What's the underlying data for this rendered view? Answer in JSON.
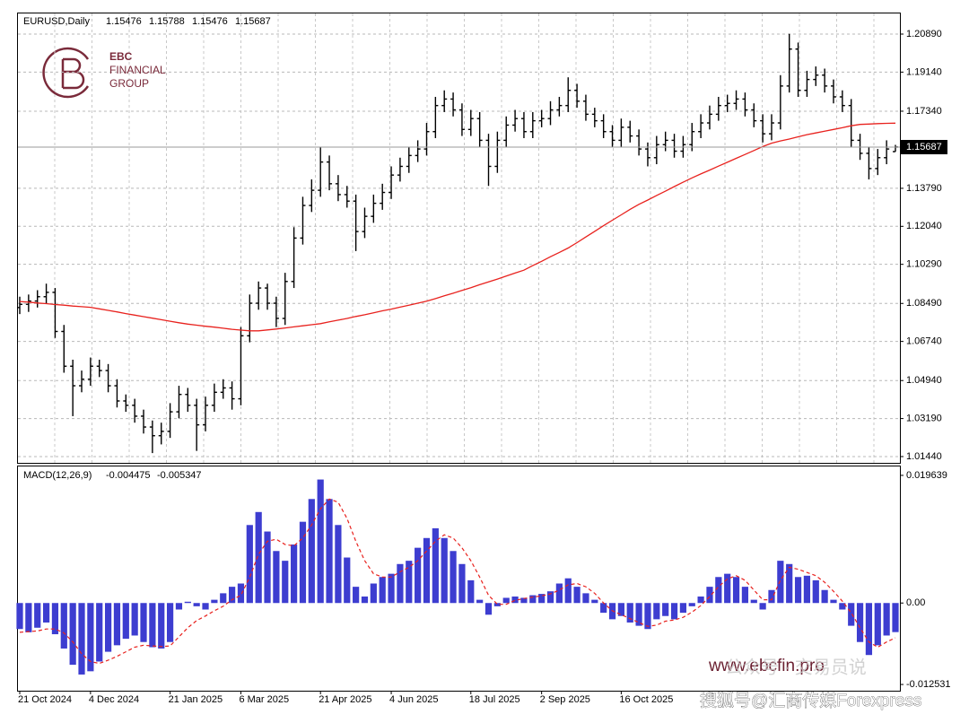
{
  "chart_data": [
    {
      "type": "ohlc",
      "title": "EURUSD,Daily",
      "header_values": [
        1.15476,
        1.15788,
        1.15476,
        1.15687
      ],
      "color": "#000000",
      "grid": true,
      "ylim": [
        1.0115,
        1.2184
      ],
      "yticks": [
        {
          "value": 1.2089,
          "label": "1.20890"
        },
        {
          "value": 1.1914,
          "label": "1.19140"
        },
        {
          "value": 1.1734,
          "label": "1.17340"
        },
        {
          "value": 1.1379,
          "label": "1.13790"
        },
        {
          "value": 1.1204,
          "label": "1.12040"
        },
        {
          "value": 1.1029,
          "label": "1.10290"
        },
        {
          "value": 1.0849,
          "label": "1.08490"
        },
        {
          "value": 1.0674,
          "label": "1.06740"
        },
        {
          "value": 1.0494,
          "label": "1.04940"
        },
        {
          "value": 1.0319,
          "label": "1.03190"
        },
        {
          "value": 1.0144,
          "label": "1.01440"
        }
      ],
      "open": [
        1.083,
        1.0845,
        1.086,
        1.088,
        1.09,
        1.072,
        1.056,
        1.047,
        1.05,
        1.056,
        1.054,
        1.047,
        1.04,
        1.038,
        1.033,
        1.028,
        1.024,
        1.026,
        1.035,
        1.043,
        1.038,
        1.029,
        1.038,
        1.044,
        1.046,
        1.041,
        1.07,
        1.085,
        1.092,
        1.085,
        1.078,
        1.095,
        1.115,
        1.13,
        1.137,
        1.15,
        1.14,
        1.135,
        1.132,
        1.118,
        1.125,
        1.131,
        1.136,
        1.144,
        1.148,
        1.153,
        1.156,
        1.164,
        1.176,
        1.179,
        1.174,
        1.165,
        1.17,
        1.16,
        1.148,
        1.16,
        1.167,
        1.17,
        1.164,
        1.169,
        1.17,
        1.174,
        1.176,
        1.183,
        1.178,
        1.172,
        1.169,
        1.164,
        1.16,
        1.166,
        1.162,
        1.156,
        1.152,
        1.158,
        1.16,
        1.155,
        1.158,
        1.164,
        1.168,
        1.172,
        1.176,
        1.177,
        1.179,
        1.174,
        1.169,
        1.163,
        1.168,
        1.185,
        1.202,
        1.183,
        1.188,
        1.19,
        1.185,
        1.18,
        1.176,
        1.16,
        1.154,
        1.147,
        1.152,
        1.1548
      ],
      "high": [
        1.088,
        1.089,
        1.091,
        1.094,
        1.092,
        1.075,
        1.059,
        1.054,
        1.06,
        1.059,
        1.057,
        1.05,
        1.043,
        1.041,
        1.036,
        1.031,
        1.03,
        1.039,
        1.047,
        1.046,
        1.041,
        1.042,
        1.048,
        1.05,
        1.049,
        1.074,
        1.089,
        1.095,
        1.094,
        1.088,
        1.099,
        1.12,
        1.134,
        1.142,
        1.157,
        1.153,
        1.144,
        1.139,
        1.135,
        1.129,
        1.135,
        1.14,
        1.148,
        1.152,
        1.157,
        1.16,
        1.168,
        1.18,
        1.183,
        1.182,
        1.177,
        1.174,
        1.173,
        1.163,
        1.164,
        1.171,
        1.174,
        1.173,
        1.173,
        1.174,
        1.178,
        1.18,
        1.189,
        1.186,
        1.181,
        1.175,
        1.172,
        1.167,
        1.17,
        1.169,
        1.165,
        1.159,
        1.162,
        1.164,
        1.163,
        1.162,
        1.168,
        1.172,
        1.176,
        1.18,
        1.181,
        1.183,
        1.182,
        1.177,
        1.172,
        1.172,
        1.19,
        1.209,
        1.205,
        1.192,
        1.194,
        1.193,
        1.188,
        1.183,
        1.179,
        1.163,
        1.157,
        1.156,
        1.16,
        1.1579
      ],
      "low": [
        1.08,
        1.081,
        1.083,
        1.085,
        1.069,
        1.053,
        1.033,
        1.044,
        1.047,
        1.051,
        1.044,
        1.037,
        1.035,
        1.03,
        1.025,
        1.016,
        1.02,
        1.023,
        1.032,
        1.035,
        1.017,
        1.026,
        1.035,
        1.041,
        1.036,
        1.038,
        1.067,
        1.082,
        1.082,
        1.074,
        1.075,
        1.092,
        1.112,
        1.127,
        1.134,
        1.137,
        1.132,
        1.129,
        1.109,
        1.115,
        1.122,
        1.128,
        1.133,
        1.141,
        1.145,
        1.15,
        1.153,
        1.161,
        1.173,
        1.171,
        1.162,
        1.162,
        1.157,
        1.139,
        1.145,
        1.157,
        1.164,
        1.161,
        1.161,
        1.166,
        1.167,
        1.171,
        1.173,
        1.175,
        1.169,
        1.166,
        1.161,
        1.157,
        1.157,
        1.159,
        1.153,
        1.148,
        1.149,
        1.155,
        1.152,
        1.152,
        1.155,
        1.161,
        1.165,
        1.169,
        1.173,
        1.174,
        1.171,
        1.166,
        1.159,
        1.16,
        1.165,
        1.182,
        1.18,
        1.18,
        1.185,
        1.182,
        1.177,
        1.173,
        1.157,
        1.151,
        1.142,
        1.144,
        1.149,
        1.1548
      ],
      "close": [
        1.0845,
        1.086,
        1.088,
        1.09,
        1.072,
        1.056,
        1.047,
        1.05,
        1.056,
        1.054,
        1.047,
        1.04,
        1.038,
        1.033,
        1.028,
        1.024,
        1.026,
        1.035,
        1.043,
        1.038,
        1.029,
        1.038,
        1.044,
        1.046,
        1.041,
        1.07,
        1.085,
        1.092,
        1.085,
        1.078,
        1.095,
        1.115,
        1.13,
        1.137,
        1.15,
        1.14,
        1.135,
        1.132,
        1.118,
        1.125,
        1.131,
        1.136,
        1.144,
        1.148,
        1.153,
        1.156,
        1.164,
        1.176,
        1.179,
        1.174,
        1.165,
        1.17,
        1.16,
        1.148,
        1.16,
        1.167,
        1.17,
        1.164,
        1.169,
        1.17,
        1.174,
        1.176,
        1.183,
        1.178,
        1.172,
        1.169,
        1.164,
        1.16,
        1.166,
        1.162,
        1.156,
        1.152,
        1.158,
        1.16,
        1.155,
        1.158,
        1.164,
        1.168,
        1.172,
        1.176,
        1.177,
        1.179,
        1.174,
        1.169,
        1.163,
        1.168,
        1.185,
        1.202,
        1.183,
        1.188,
        1.19,
        1.185,
        1.18,
        1.176,
        1.16,
        1.154,
        1.147,
        1.152,
        1.156,
        1.1569
      ],
      "ma": {
        "color": "#e8221e",
        "values": [
          1.0858,
          1.0855,
          1.0851,
          1.0848,
          1.0844,
          1.0841,
          1.0837,
          1.0834,
          1.0831,
          1.0824,
          1.0817,
          1.081,
          1.0802,
          1.0795,
          1.0788,
          1.0781,
          1.0774,
          1.0767,
          1.076,
          1.0754,
          1.0749,
          1.0744,
          1.074,
          1.0735,
          1.073,
          1.0726,
          1.0723,
          1.0723,
          1.0727,
          1.0731,
          1.0736,
          1.0741,
          1.0746,
          1.0751,
          1.0756,
          1.0764,
          1.0772,
          1.078,
          1.0789,
          1.0797,
          1.0806,
          1.0815,
          1.0823,
          1.0832,
          1.0841,
          1.085,
          1.0859,
          1.0871,
          1.0884,
          1.0896,
          1.0909,
          1.0921,
          1.0935,
          1.0948,
          1.0961,
          1.0975,
          1.0989,
          1.1002,
          1.1023,
          1.1043,
          1.1064,
          1.1084,
          1.1104,
          1.1129,
          1.1155,
          1.1181,
          1.1207,
          1.1232,
          1.1257,
          1.1282,
          1.1305,
          1.1325,
          1.1346,
          1.1366,
          1.1387,
          1.1407,
          1.1427,
          1.1445,
          1.1463,
          1.1481,
          1.1499,
          1.1517,
          1.1535,
          1.1553,
          1.1571,
          1.1587,
          1.1597,
          1.1606,
          1.1616,
          1.1626,
          1.1634,
          1.1642,
          1.165,
          1.1658,
          1.1667,
          1.1673,
          1.1675,
          1.1677,
          1.1678,
          1.1679
        ]
      },
      "annotations": [
        "EBC",
        "FINANCIAL",
        "GROUP",
        "www.ebcfin.pro",
        "公众号 · 交易员说",
        "搜狐号@汇商传媒Forexpress"
      ]
    },
    {
      "type": "macd",
      "title": "MACD(12,26,9)",
      "header_values": [
        -0.004475,
        -0.005347
      ],
      "grid": false,
      "ylim": [
        -0.01349,
        0.02101
      ],
      "yticks": [
        0.019639,
        {
          "value": 0,
          "label": "0.00"
        },
        -0.012531
      ],
      "categories": [
        "21 Oct 2024",
        null,
        null,
        null,
        null,
        null,
        null,
        null,
        "4 Dec 2024",
        null,
        null,
        null,
        null,
        null,
        null,
        null,
        null,
        "21 Jan 2025",
        null,
        null,
        null,
        null,
        null,
        null,
        null,
        "6 Mar 2025",
        null,
        null,
        null,
        null,
        null,
        null,
        null,
        null,
        "21 Apr 2025",
        null,
        null,
        null,
        null,
        null,
        null,
        null,
        "4 Jun 2025",
        null,
        null,
        null,
        null,
        null,
        null,
        null,
        null,
        "18 Jul 2025",
        null,
        null,
        null,
        null,
        null,
        null,
        null,
        "2 Sep 2025",
        null,
        null,
        null,
        null,
        null,
        null,
        null,
        null,
        "16 Oct 2025",
        null,
        null,
        null,
        null,
        null,
        null,
        null,
        null,
        null,
        null,
        null,
        null,
        null,
        null,
        null,
        null,
        null,
        null,
        null,
        null,
        null,
        null,
        null,
        null,
        null,
        null,
        null,
        null,
        null,
        null,
        null
      ],
      "histogram": {
        "color": "#3d3dd0",
        "values": [
          -0.004,
          -0.0045,
          -0.0038,
          -0.003,
          -0.0048,
          -0.007,
          -0.0095,
          -0.011,
          -0.0105,
          -0.009,
          -0.0075,
          -0.0065,
          -0.0055,
          -0.005,
          -0.006,
          -0.0068,
          -0.007,
          -0.006,
          -0.001,
          0.0002,
          -0.0005,
          -0.001,
          0.0005,
          0.0015,
          0.0025,
          0.003,
          0.012,
          0.014,
          0.011,
          0.008,
          0.0065,
          0.009,
          0.0125,
          0.016,
          0.019,
          0.016,
          0.012,
          0.007,
          0.0025,
          0.001,
          0.003,
          0.004,
          0.0045,
          0.006,
          0.0065,
          0.0085,
          0.01,
          0.0115,
          0.01,
          0.008,
          0.006,
          0.0035,
          0.0005,
          -0.0018,
          -0.0005,
          0.0008,
          0.001,
          0.0008,
          0.0012,
          0.0014,
          0.0018,
          0.003,
          0.0038,
          0.0025,
          0.0015,
          0.0005,
          -0.0015,
          -0.0025,
          -0.002,
          -0.003,
          -0.0035,
          -0.004,
          -0.0025,
          -0.002,
          -0.0025,
          -0.0015,
          -0.0005,
          0.001,
          0.0025,
          0.004,
          0.0045,
          0.004,
          0.0025,
          0.0005,
          -0.001,
          0.002,
          0.0065,
          0.006,
          0.004,
          0.0042,
          0.0035,
          0.002,
          0.0005,
          -0.001,
          -0.0035,
          -0.006,
          -0.008,
          -0.0065,
          -0.005,
          -0.004475
        ]
      },
      "signal": {
        "color": "#e8221e",
        "values": [
          -0.0045,
          -0.0044,
          -0.0043,
          -0.004,
          -0.004,
          -0.0046,
          -0.006,
          -0.0078,
          -0.009,
          -0.0093,
          -0.0088,
          -0.0082,
          -0.0075,
          -0.0068,
          -0.0065,
          -0.0066,
          -0.0067,
          -0.0066,
          -0.0052,
          -0.0038,
          -0.0027,
          -0.002,
          -0.0012,
          -0.0005,
          0.0005,
          0.0012,
          0.004,
          0.0075,
          0.0095,
          0.0098,
          0.009,
          0.0088,
          0.01,
          0.012,
          0.0145,
          0.016,
          0.0155,
          0.013,
          0.0095,
          0.0065,
          0.0045,
          0.004,
          0.004,
          0.0048,
          0.0055,
          0.0065,
          0.008,
          0.0095,
          0.0105,
          0.01,
          0.0085,
          0.0065,
          0.004,
          0.0012,
          -0.0002,
          -0.0002,
          0.0004,
          0.0007,
          0.0009,
          0.0011,
          0.0014,
          0.002,
          0.0028,
          0.003,
          0.0025,
          0.0015,
          0.0,
          -0.0012,
          -0.0018,
          -0.0024,
          -0.003,
          -0.0036,
          -0.0034,
          -0.0028,
          -0.0026,
          -0.0022,
          -0.0014,
          -0.0004,
          0.001,
          0.0025,
          0.0037,
          0.0042,
          0.0035,
          0.002,
          0.0005,
          0.0005,
          0.0035,
          0.0055,
          0.0052,
          0.0047,
          0.0042,
          0.0032,
          0.0018,
          0.0003,
          -0.0015,
          -0.0038,
          -0.006,
          -0.0068,
          -0.006,
          -0.005347
        ]
      }
    }
  ]
}
